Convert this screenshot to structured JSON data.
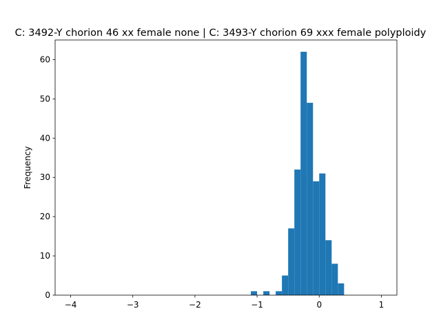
{
  "chart_data": {
    "type": "bar",
    "title": "C: 3492-Y chorion 46 xx female none | C: 3493-Y chorion 69 xxx female polyploidy",
    "xlabel": "",
    "ylabel": "Frequency",
    "xlim": [
      -4.25,
      1.25
    ],
    "ylim": [
      0,
      65
    ],
    "xticks": [
      -4,
      -3,
      -2,
      -1,
      0,
      1
    ],
    "xtick_labels": [
      "−4",
      "−3",
      "−2",
      "−1",
      "0",
      "1"
    ],
    "yticks": [
      0,
      10,
      20,
      30,
      40,
      50,
      60
    ],
    "ytick_labels": [
      "0",
      "10",
      "20",
      "30",
      "40",
      "50",
      "60"
    ],
    "grid": false,
    "color": "#1f77b4",
    "bin_width": 0.1,
    "bins": [
      {
        "left": -1.1,
        "count": 1
      },
      {
        "left": -0.9,
        "count": 1
      },
      {
        "left": -0.7,
        "count": 1
      },
      {
        "left": -0.6,
        "count": 5
      },
      {
        "left": -0.5,
        "count": 17
      },
      {
        "left": -0.4,
        "count": 32
      },
      {
        "left": -0.3,
        "count": 62
      },
      {
        "left": -0.2,
        "count": 49
      },
      {
        "left": -0.1,
        "count": 29
      },
      {
        "left": 0.0,
        "count": 31
      },
      {
        "left": 0.1,
        "count": 14
      },
      {
        "left": 0.2,
        "count": 8
      },
      {
        "left": 0.3,
        "count": 3
      }
    ]
  }
}
